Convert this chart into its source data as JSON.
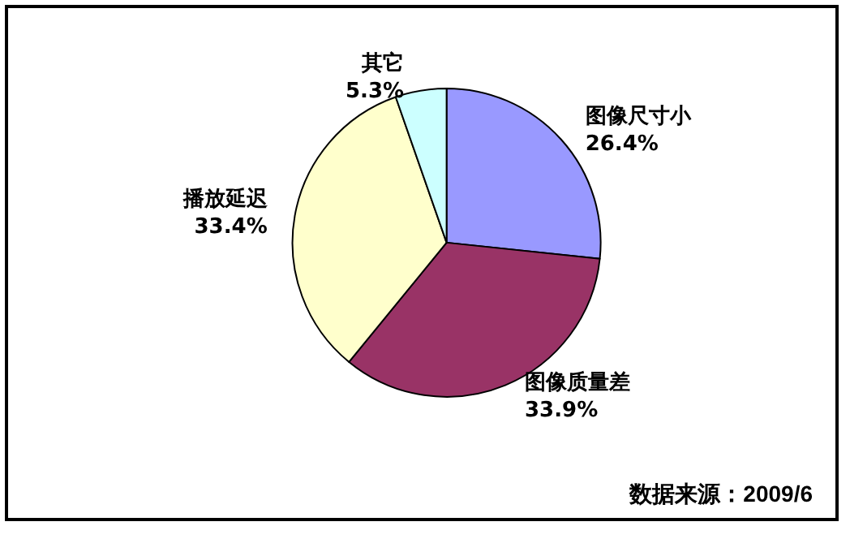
{
  "chart_data": {
    "type": "pie",
    "categories": [
      "图像尺寸小",
      "图像质量差",
      "播放延迟",
      "其它"
    ],
    "values": [
      26.4,
      33.9,
      33.4,
      5.3
    ],
    "colors": [
      "#9999ff",
      "#993366",
      "#ffffcc",
      "#ccffff"
    ],
    "value_labels": [
      "26.4%",
      "33.9%",
      "33.4%",
      "5.3%"
    ],
    "legend": false,
    "annotations": [
      "数据来源：2009/6"
    ]
  }
}
